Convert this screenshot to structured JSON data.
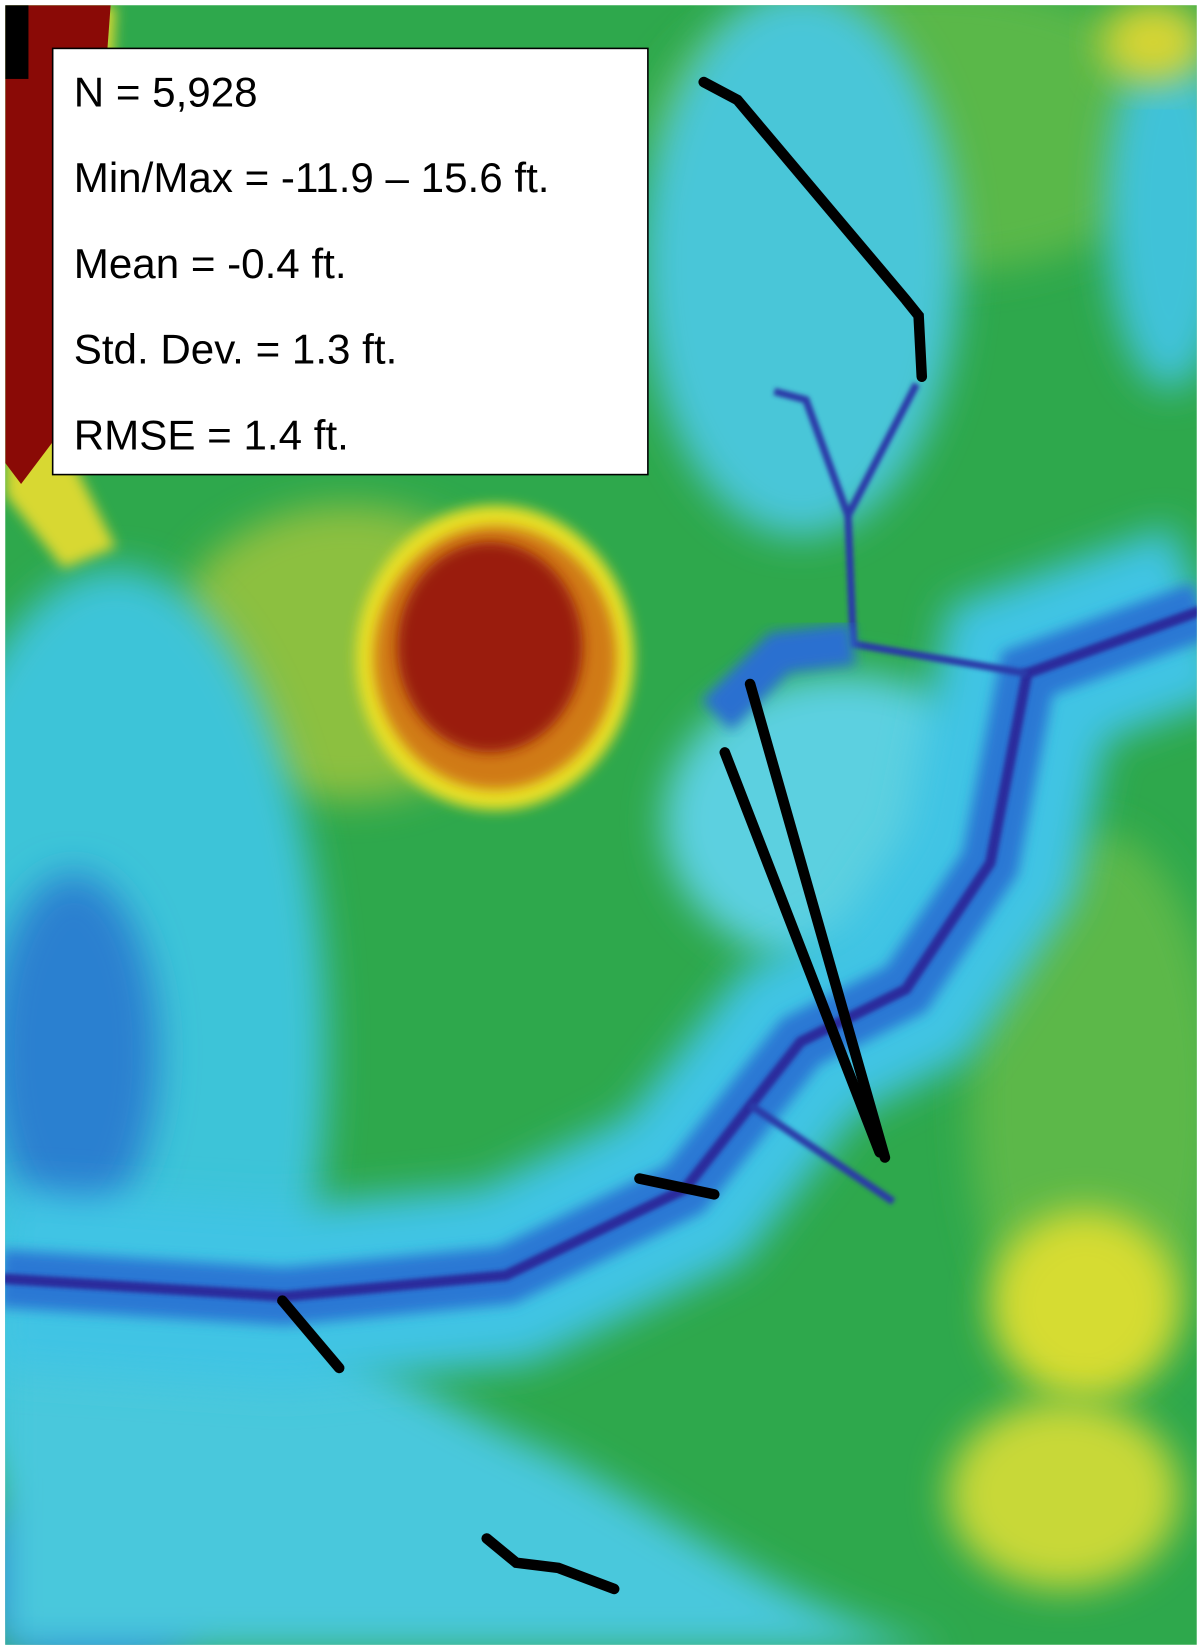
{
  "stats": {
    "lines": [
      "N = 5,928",
      "Min/Max = -11.9 – 15.6 ft.",
      "Mean = -0.4 ft.",
      "Std. Dev. = 1.3 ft.",
      "RMSE = 1.4 ft."
    ]
  }
}
